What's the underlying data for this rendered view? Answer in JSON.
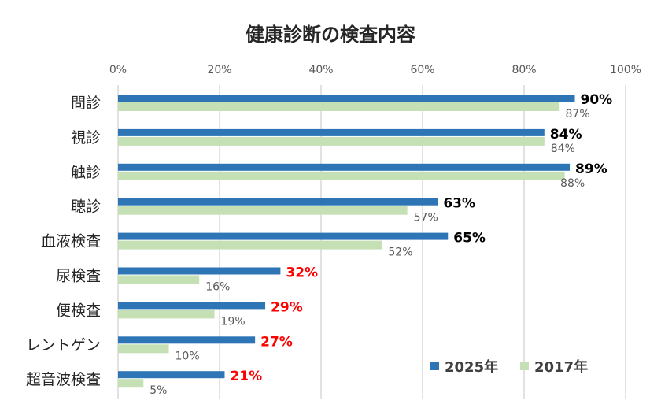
{
  "chart_data": {
    "type": "bar",
    "orientation": "horizontal",
    "title": "健康診断の検査内容",
    "categories": [
      "問診",
      "視診",
      "触診",
      "聴診",
      "血液検査",
      "尿検査",
      "便検査",
      "レントゲン",
      "超音波検査"
    ],
    "series": [
      {
        "name": "2025年",
        "color": "#2e75b6",
        "values": [
          90,
          84,
          89,
          63,
          65,
          32,
          29,
          27,
          21
        ],
        "labels": [
          "90%",
          "84%",
          "89%",
          "63%",
          "65%",
          "32%",
          "29%",
          "27%",
          "21%"
        ]
      },
      {
        "name": "2017年",
        "color": "#c5e0b4",
        "values": [
          87,
          84,
          88,
          57,
          52,
          16,
          19,
          10,
          5
        ],
        "labels": [
          "87%",
          "84%",
          "88%",
          "57%",
          "52%",
          "16%",
          "19%",
          "10%",
          "5%"
        ]
      }
    ],
    "label_colors": [
      "#000000",
      "#000000",
      "#000000",
      "#000000",
      "#000000",
      "#ff0000",
      "#ff0000",
      "#ff0000",
      "#ff0000"
    ],
    "xlim": [
      0,
      100
    ],
    "xticks": [
      "0%",
      "20%",
      "40%",
      "60%",
      "80%",
      "100%"
    ],
    "xaxis_position": "top",
    "grid": true,
    "legend": "bottom-right"
  }
}
